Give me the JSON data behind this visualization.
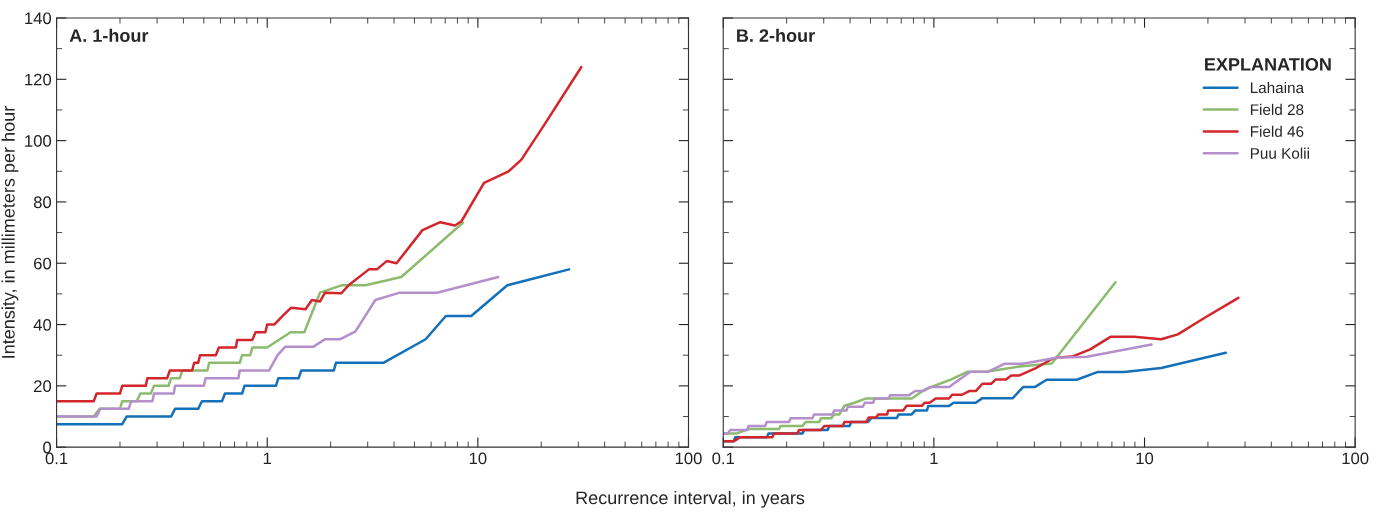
{
  "chart_data": [
    {
      "type": "line",
      "title": "A. 1-hour",
      "xlabel": "Recurrence interval, in years",
      "ylabel": "Intensity, in millimeters per hour",
      "log": "x",
      "xlim": [
        0.1,
        100
      ],
      "xticks": [
        0.1,
        1,
        10,
        100
      ],
      "ylim": [
        0,
        140
      ],
      "yticks": [
        0,
        20,
        40,
        60,
        80,
        100,
        120,
        140
      ],
      "grid": false,
      "legend": false,
      "series": [
        {
          "color": "#1370b9",
          "x": [
            0.1,
            0.205,
            0.215,
            0.35,
            0.365,
            0.47,
            0.49,
            0.61,
            0.63,
            0.76,
            0.78,
            1.1,
            1.13,
            1.41,
            1.45,
            2.07,
            2.12,
            3.56,
            5.65,
            7.05,
            9.3,
            13.8,
            27.1
          ],
          "values": [
            7.5,
            7.5,
            10,
            10,
            12.5,
            12.5,
            15,
            15,
            17.5,
            17.5,
            20,
            20,
            22.5,
            22.5,
            25,
            25,
            27.5,
            27.5,
            35.2,
            42.8,
            42.8,
            52.8,
            58
          ]
        },
        {
          "color": "#8cbb6e",
          "x": [
            0.1,
            0.15,
            0.16,
            0.2,
            0.205,
            0.24,
            0.25,
            0.28,
            0.29,
            0.34,
            0.35,
            0.385,
            0.395,
            0.52,
            0.53,
            0.74,
            0.76,
            0.83,
            0.85,
            1.0,
            1.29,
            1.5,
            1.78,
            2.25,
            2.93,
            4.33,
            8.49
          ],
          "values": [
            10,
            10,
            12.5,
            12.5,
            15,
            15,
            17.5,
            17.5,
            20,
            20,
            22.5,
            22.5,
            25,
            25,
            27.5,
            27.5,
            30,
            30,
            32.5,
            32.5,
            37.5,
            37.5,
            50.4,
            52.8,
            52.8,
            55.5,
            73.2
          ]
        },
        {
          "color": "#d3262c",
          "x": [
            0.1,
            0.15,
            0.155,
            0.2,
            0.205,
            0.265,
            0.27,
            0.335,
            0.345,
            0.44,
            0.45,
            0.47,
            0.48,
            0.57,
            0.59,
            0.71,
            0.72,
            0.85,
            0.88,
            0.98,
            1.0,
            1.08,
            1.19,
            1.3,
            1.52,
            1.63,
            1.78,
            1.88,
            2.25,
            2.45,
            3.04,
            3.32,
            3.69,
            4.11,
            5.46,
            6.63,
            7.78,
            8.36,
            10.7,
            14,
            16.1,
            20.7,
            31
          ],
          "values": [
            15,
            15,
            17.5,
            17.5,
            20,
            20,
            22.5,
            22.5,
            25,
            25,
            27.5,
            27.5,
            30,
            30,
            32.5,
            32.5,
            35,
            35,
            37.5,
            37.5,
            40,
            40,
            43,
            45.5,
            45,
            48,
            47.5,
            50.4,
            50.2,
            53,
            58,
            58,
            60.7,
            60,
            70.8,
            73.4,
            72.3,
            73.7,
            86.2,
            90,
            93.8,
            105.2,
            124
          ]
        },
        {
          "color": "#b48fcb",
          "x": [
            0.1,
            0.155,
            0.161,
            0.22,
            0.226,
            0.285,
            0.29,
            0.36,
            0.365,
            0.5,
            0.51,
            0.73,
            0.74,
            1.02,
            1.12,
            1.22,
            1.66,
            1.88,
            2.21,
            2.62,
            3.26,
            4.26,
            6.4,
            12.5
          ],
          "values": [
            10,
            10,
            12.5,
            12.5,
            15,
            15,
            17.5,
            17.5,
            20,
            20,
            22.5,
            22.5,
            25,
            25,
            30,
            32.8,
            32.8,
            35.2,
            35.2,
            37.7,
            48,
            50.4,
            50.4,
            55.5
          ]
        }
      ]
    },
    {
      "type": "line",
      "title": "B. 2-hour",
      "legend_title": "EXPLANATION",
      "log": "x",
      "xlim": [
        0.1,
        100
      ],
      "xticks": [
        0.1,
        1,
        10,
        100
      ],
      "ylim": [
        0,
        140
      ],
      "yticks": [
        {
          "value": 0,
          "label": null
        },
        {
          "value": 20,
          "label": null
        },
        {
          "value": 40,
          "label": null
        },
        {
          "value": 60,
          "label": null
        },
        {
          "value": 80,
          "label": null
        },
        {
          "value": 100,
          "label": null
        },
        {
          "value": 120,
          "label": null
        },
        {
          "value": 140,
          "label": null
        }
      ],
      "tick_labels": "x",
      "grid": false,
      "legend": "top right",
      "series": [
        {
          "name": "Lahaina",
          "color": "#1370b9",
          "x": [
            0.1,
            0.112,
            0.114,
            0.161,
            0.164,
            0.238,
            0.242,
            0.313,
            0.319,
            0.398,
            0.405,
            0.486,
            0.505,
            0.667,
            0.68,
            0.785,
            0.815,
            0.927,
            0.94,
            1.18,
            1.24,
            1.58,
            1.7,
            2.37,
            2.65,
            3.01,
            3.43,
            4.77,
            5.96,
            8.0,
            12,
            24.3
          ],
          "values": [
            1.9,
            1.9,
            3.2,
            3.2,
            4.5,
            4.5,
            5.6,
            5.6,
            6.9,
            6.9,
            8.2,
            8.2,
            9.5,
            9.5,
            10.7,
            10.7,
            12,
            12,
            13.4,
            13.4,
            14.5,
            14.5,
            16,
            16,
            19.6,
            19.6,
            22,
            22,
            24.5,
            24.5,
            25.8,
            30.8
          ]
        },
        {
          "name": "Field 28",
          "color": "#8cbb6e",
          "x": [
            0.1,
            0.116,
            0.132,
            0.184,
            0.187,
            0.238,
            0.246,
            0.286,
            0.291,
            0.325,
            0.337,
            0.356,
            0.376,
            0.42,
            0.478,
            0.785,
            0.91,
            1.21,
            1.44,
            1.77,
            2.55,
            3.63,
            7.28
          ],
          "values": [
            4.5,
            4.5,
            5.9,
            5.9,
            6.9,
            6.9,
            8.2,
            8.2,
            9.4,
            9.4,
            10.7,
            10.7,
            13.5,
            14.5,
            15.9,
            15.9,
            18.9,
            22.1,
            24.6,
            24.6,
            26.3,
            27.3,
            53.8
          ]
        },
        {
          "name": "Field 46",
          "color": "#d3262c",
          "x": [
            0.1,
            0.112,
            0.12,
            0.171,
            0.174,
            0.225,
            0.229,
            0.291,
            0.302,
            0.369,
            0.376,
            0.478,
            0.49,
            0.533,
            0.544,
            0.6,
            0.607,
            0.716,
            0.742,
            0.877,
            0.905,
            0.955,
            1.02,
            1.18,
            1.22,
            1.36,
            1.47,
            1.58,
            1.7,
            1.87,
            1.97,
            2.2,
            2.33,
            2.55,
            3.07,
            3.69,
            4.6,
            5.52,
            6.89,
            8.92,
            12,
            14.4,
            19.3,
            27.9
          ],
          "values": [
            1.9,
            1.9,
            3.2,
            3.2,
            4.5,
            4.5,
            5.6,
            5.6,
            6.9,
            6.9,
            8.2,
            8.2,
            9.7,
            9.7,
            10.7,
            10.7,
            12,
            12,
            13.5,
            13.5,
            14.5,
            14.5,
            15.9,
            15.9,
            17.1,
            17.1,
            18.3,
            18.3,
            20.7,
            20.7,
            22.1,
            22.1,
            23.4,
            23.4,
            25.9,
            29,
            29.7,
            31.9,
            36,
            36,
            35.2,
            36.8,
            42.2,
            48.7
          ]
        },
        {
          "name": "Puu Kolii",
          "color": "#b48fcb",
          "x": [
            0.1,
            0.105,
            0.108,
            0.13,
            0.132,
            0.158,
            0.161,
            0.205,
            0.209,
            0.265,
            0.27,
            0.33,
            0.337,
            0.385,
            0.39,
            0.46,
            0.47,
            0.515,
            0.524,
            0.61,
            0.62,
            0.76,
            0.815,
            0.89,
            0.96,
            1.18,
            1.49,
            1.8,
            2.16,
            2.65,
            3.83,
            5.33,
            10.8
          ],
          "values": [
            4.5,
            4.5,
            5.6,
            5.6,
            6.9,
            6.9,
            8.2,
            8.2,
            9.4,
            9.4,
            10.7,
            10.7,
            12,
            12,
            13.2,
            13.2,
            14.5,
            14.5,
            15.9,
            15.9,
            16.9,
            16.9,
            18.3,
            18.3,
            19.6,
            19.6,
            24.6,
            24.6,
            27.2,
            27.2,
            29.2,
            29.5,
            33.5
          ]
        }
      ]
    }
  ]
}
